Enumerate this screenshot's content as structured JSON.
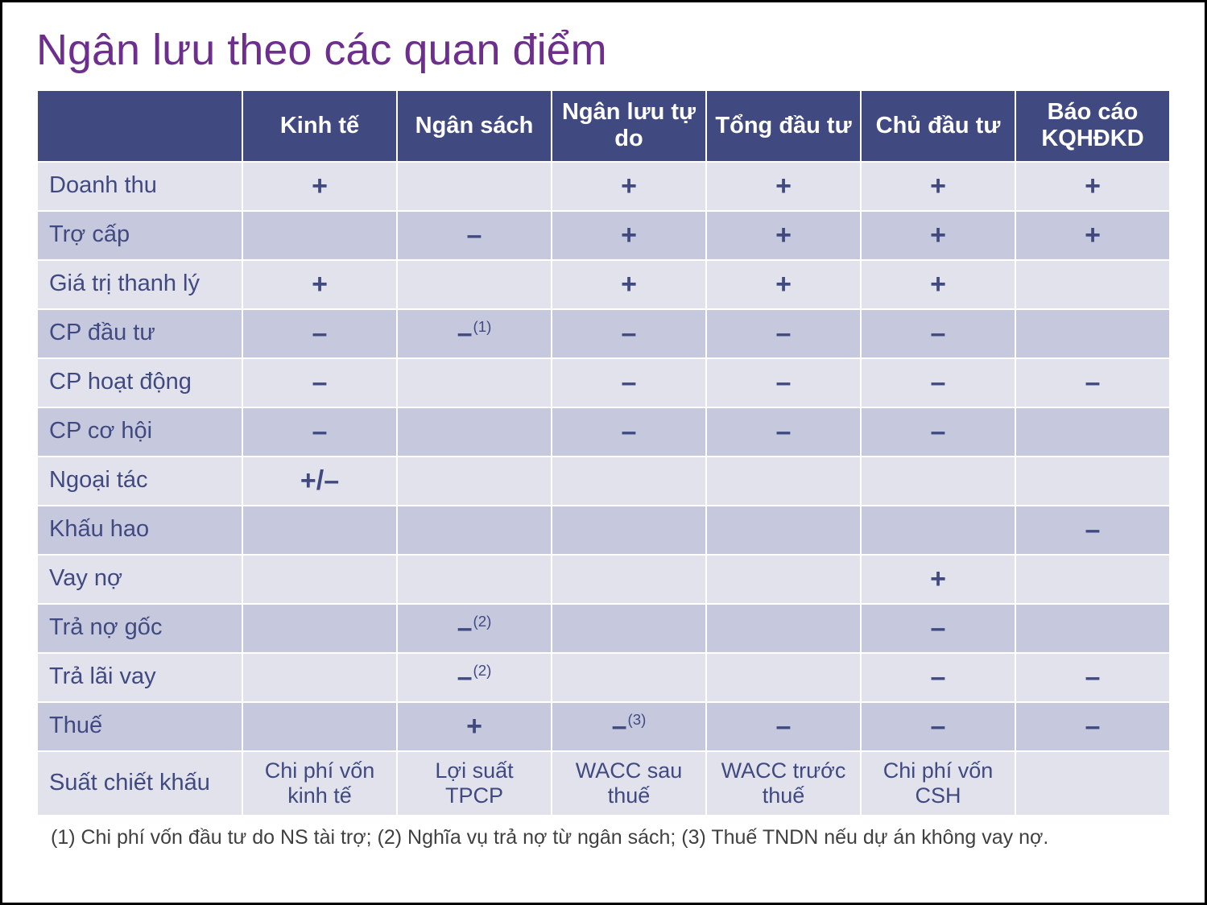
{
  "title": "Ngân lưu theo các quan điểm",
  "colors": {
    "title_color": "#6d2e8e",
    "header_bg": "#414a80",
    "header_text": "#ffffff",
    "row_bg_even": "#e2e2ed",
    "row_bg_odd": "#c6c9de",
    "row_text": "#414a80",
    "footnote_text": "#404040"
  },
  "columns": [
    "Kinh tế",
    "Ngân sách",
    "Ngân lưu tự do",
    "Tổng đầu tư",
    "Chủ đầu tư",
    "Báo cáo KQHĐKD"
  ],
  "rows": [
    {
      "label": "Doanh thu",
      "cells": [
        "+",
        "",
        "+",
        "+",
        "+",
        "+"
      ]
    },
    {
      "label": "Trợ cấp",
      "cells": [
        "",
        "–",
        "+",
        "+",
        "+",
        "+"
      ]
    },
    {
      "label": "Giá trị thanh lý",
      "cells": [
        "+",
        "",
        "+",
        "+",
        "+",
        ""
      ]
    },
    {
      "label": "CP đầu tư",
      "cells": [
        "–",
        "–|(1)",
        "–",
        "–",
        "–",
        ""
      ]
    },
    {
      "label": "CP hoạt  động",
      "cells": [
        "–",
        "",
        "–",
        "–",
        "–",
        "–"
      ]
    },
    {
      "label": "CP cơ hội",
      "cells": [
        "–",
        "",
        "–",
        "–",
        "–",
        ""
      ]
    },
    {
      "label": "Ngoại tác",
      "cells": [
        "+/–",
        "",
        "",
        "",
        "",
        ""
      ]
    },
    {
      "label": "Khấu hao",
      "cells": [
        "",
        "",
        "",
        "",
        "",
        "–"
      ]
    },
    {
      "label": "Vay nợ",
      "cells": [
        "",
        "",
        "",
        "",
        "+",
        ""
      ]
    },
    {
      "label": "Trả nợ gốc",
      "cells": [
        "",
        "–|(2)",
        "",
        "",
        "–",
        ""
      ]
    },
    {
      "label": "Trả lãi vay",
      "cells": [
        "",
        "–|(2)",
        "",
        "",
        "–",
        "–"
      ]
    },
    {
      "label": "Thuế",
      "cells": [
        "",
        "+",
        "–|(3)",
        "–",
        "–",
        "–"
      ]
    },
    {
      "label": "Suất chiết khấu",
      "cells": [
        "Chi phí vốn kinh tế",
        "Lợi suất TPCP",
        "WACC sau thuế",
        "WACC trước thuế",
        "Chi phí vốn CSH",
        ""
      ],
      "textRow": true
    }
  ],
  "footnote": "(1) Chi phí vốn đầu tư do NS tài trợ; (2) Nghĩa vụ trả nợ từ ngân sách; (3) Thuế TNDN nếu dự án không vay nợ."
}
